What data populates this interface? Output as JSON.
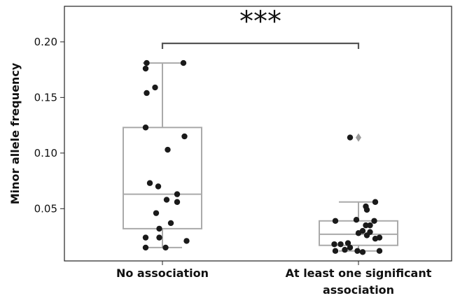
{
  "chart_data": {
    "type": "box",
    "ylabel": "Minor allele frequency",
    "ylim": [
      0.003,
      0.232
    ],
    "yticks": [
      0.05,
      0.1,
      0.15,
      0.2
    ],
    "ytick_labels": [
      "0.05",
      "0.10",
      "0.15",
      "0.20"
    ],
    "categories": [
      {
        "label_lines": [
          "No association"
        ]
      },
      {
        "label_lines": [
          "At least one significant",
          "association"
        ]
      }
    ],
    "significance": "***",
    "groups": [
      {
        "box": {
          "whisker_low": 0.015,
          "q1": 0.032,
          "median": 0.063,
          "q3": 0.123,
          "whisker_high": 0.181
        },
        "outliers": [],
        "points": [
          {
            "x": -0.15,
            "y": 0.181
          },
          {
            "x": 0.2,
            "y": 0.181
          },
          {
            "x": -0.16,
            "y": 0.176
          },
          {
            "x": -0.07,
            "y": 0.159
          },
          {
            "x": -0.15,
            "y": 0.154
          },
          {
            "x": -0.16,
            "y": 0.123
          },
          {
            "x": 0.21,
            "y": 0.115
          },
          {
            "x": 0.05,
            "y": 0.103
          },
          {
            "x": -0.12,
            "y": 0.073
          },
          {
            "x": -0.04,
            "y": 0.07
          },
          {
            "x": 0.14,
            "y": 0.063
          },
          {
            "x": 0.04,
            "y": 0.058
          },
          {
            "x": 0.14,
            "y": 0.056
          },
          {
            "x": 0.08,
            "y": 0.037
          },
          {
            "x": -0.06,
            "y": 0.046
          },
          {
            "x": -0.03,
            "y": 0.032
          },
          {
            "x": -0.16,
            "y": 0.024
          },
          {
            "x": -0.03,
            "y": 0.024
          },
          {
            "x": 0.23,
            "y": 0.021
          },
          {
            "x": -0.16,
            "y": 0.015
          },
          {
            "x": 0.03,
            "y": 0.015
          }
        ]
      },
      {
        "box": {
          "whisker_low": 0.012,
          "q1": 0.017,
          "median": 0.027,
          "q3": 0.039,
          "whisker_high": 0.056
        },
        "outliers": [
          0.114
        ],
        "points": [
          {
            "x": -0.08,
            "y": 0.114
          },
          {
            "x": 0.16,
            "y": 0.056
          },
          {
            "x": 0.07,
            "y": 0.052
          },
          {
            "x": 0.08,
            "y": 0.049
          },
          {
            "x": -0.22,
            "y": 0.039
          },
          {
            "x": -0.02,
            "y": 0.04
          },
          {
            "x": 0.15,
            "y": 0.039
          },
          {
            "x": 0.07,
            "y": 0.035
          },
          {
            "x": 0.11,
            "y": 0.035
          },
          {
            "x": 0.0,
            "y": 0.028
          },
          {
            "x": 0.04,
            "y": 0.03
          },
          {
            "x": 0.11,
            "y": 0.029
          },
          {
            "x": 0.16,
            "y": 0.023
          },
          {
            "x": 0.2,
            "y": 0.024
          },
          {
            "x": 0.08,
            "y": 0.026
          },
          {
            "x": -0.23,
            "y": 0.018
          },
          {
            "x": -0.17,
            "y": 0.018
          },
          {
            "x": -0.1,
            "y": 0.019
          },
          {
            "x": -0.13,
            "y": 0.013
          },
          {
            "x": -0.08,
            "y": 0.015
          },
          {
            "x": -0.22,
            "y": 0.012
          },
          {
            "x": -0.01,
            "y": 0.012
          },
          {
            "x": 0.04,
            "y": 0.011
          },
          {
            "x": 0.2,
            "y": 0.012
          }
        ]
      }
    ]
  },
  "colors": {
    "box": "#aaaaaa",
    "point": "#1a1a1a",
    "outlier": "#9a9a9a",
    "axis": "#222222",
    "bracket": "#555555"
  }
}
